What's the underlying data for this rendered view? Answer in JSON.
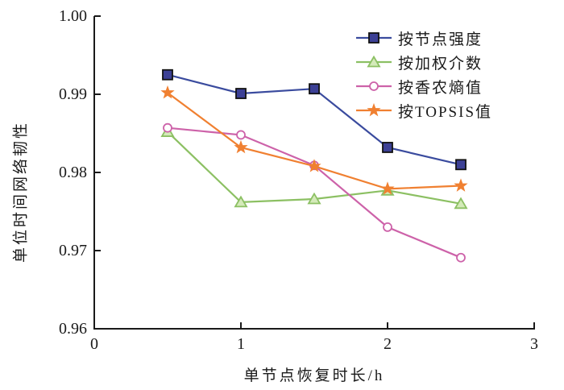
{
  "figure": {
    "background": "#ffffff",
    "axis_color": "#1a1a1a"
  },
  "chart_data": {
    "type": "line",
    "x": [
      0.5,
      1.0,
      1.5,
      2.0,
      2.5
    ],
    "series": [
      {
        "name": "按节点强度",
        "marker": "square",
        "color": "#3a4b9e",
        "marker_fill": "#3c4095",
        "marker_stroke": "#111111",
        "values": [
          0.9925,
          0.9901,
          0.9907,
          0.9832,
          0.981
        ]
      },
      {
        "name": "按加权介数",
        "marker": "triangle",
        "color": "#8cc063",
        "marker_fill": "#d4eab9",
        "marker_stroke": "#8cc063",
        "values": [
          0.9852,
          0.9762,
          0.9766,
          0.9777,
          0.976
        ]
      },
      {
        "name": "按香农熵值",
        "marker": "circle-open",
        "color": "#cd62a9",
        "marker_fill": "#ffffff",
        "marker_stroke": "#cd62a9",
        "values": [
          0.9857,
          0.9848,
          0.9809,
          0.973,
          0.9691
        ]
      },
      {
        "name": "按TOPSIS值",
        "marker": "star",
        "color": "#f08031",
        "marker_fill": "#f08031",
        "marker_stroke": "#f08031",
        "values": [
          0.9902,
          0.9832,
          0.9808,
          0.9779,
          0.9783
        ]
      }
    ],
    "xlabel": "单节点恢复时长/h",
    "ylabel": "单位时间网络韧性",
    "xlim": [
      0,
      3
    ],
    "ylim": [
      0.96,
      1.0
    ],
    "x_ticks": [
      0,
      1,
      2,
      3
    ],
    "x_tick_labels": [
      "0",
      "1",
      "2",
      "3"
    ],
    "y_ticks": [
      1.0,
      0.99,
      0.98,
      0.97,
      0.96
    ],
    "y_tick_labels": [
      "1.00",
      "0.99",
      "0.98",
      "0.97",
      "0.96"
    ],
    "grid": false,
    "legend_position": "upper-right"
  }
}
